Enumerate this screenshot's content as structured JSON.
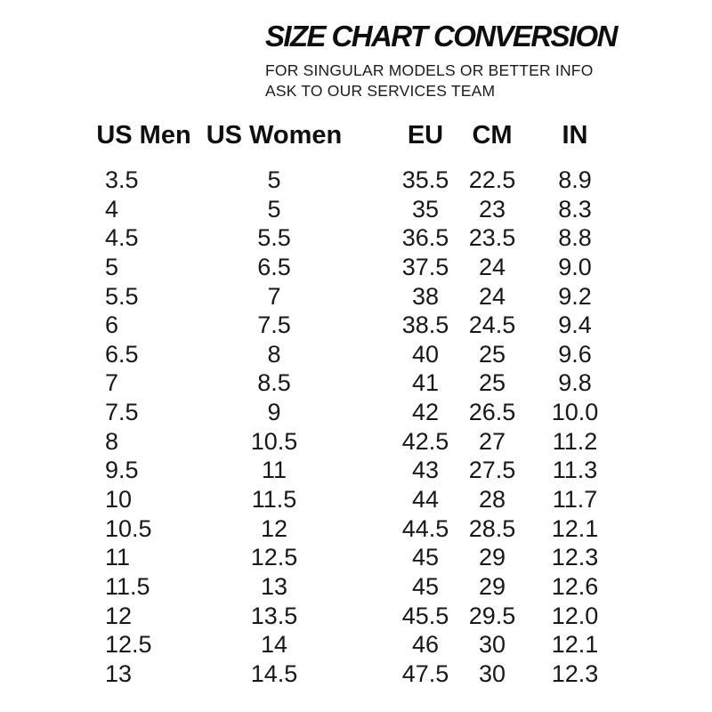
{
  "page": {
    "background_color": "#ffffff",
    "text_color": "#161616"
  },
  "header": {
    "title": "SIZE CHART CONVERSION",
    "subtitle_line1": "FOR SINGULAR MODELS OR BETTER INFO",
    "subtitle_line2": "ASK TO OUR SERVICES TEAM"
  },
  "table": {
    "columns": [
      "US Men",
      "US Women",
      "EU",
      "CM",
      "IN"
    ],
    "rows": [
      [
        "3.5",
        "5",
        "35.5",
        "22.5",
        "8.9"
      ],
      [
        "4",
        "5",
        "35",
        "23",
        "8.3"
      ],
      [
        "4.5",
        "5.5",
        "36.5",
        "23.5",
        "8.8"
      ],
      [
        "5",
        "6.5",
        "37.5",
        "24",
        "9.0"
      ],
      [
        "5.5",
        "7",
        "38",
        "24",
        "9.2"
      ],
      [
        "6",
        "7.5",
        "38.5",
        "24.5",
        "9.4"
      ],
      [
        "6.5",
        "8",
        "40",
        "25",
        "9.6"
      ],
      [
        "7",
        "8.5",
        "41",
        "25",
        "9.8"
      ],
      [
        "7.5",
        "9",
        "42",
        "26.5",
        "10.0"
      ],
      [
        "8",
        "10.5",
        "42.5",
        "27",
        "11.2"
      ],
      [
        "9.5",
        "11",
        "43",
        "27.5",
        "11.3"
      ],
      [
        "10",
        "11.5",
        "44",
        "28",
        "11.7"
      ],
      [
        "10.5",
        "12",
        "44.5",
        "28.5",
        "12.1"
      ],
      [
        "11",
        "12.5",
        "45",
        "29",
        "12.3"
      ],
      [
        "11.5",
        "13",
        "45",
        "29",
        "12.6"
      ],
      [
        "12",
        "13.5",
        "45.5",
        "29.5",
        "12.0"
      ],
      [
        "12.5",
        "14",
        "46",
        "30",
        "12.1"
      ],
      [
        "13",
        "14.5",
        "47.5",
        "30",
        "12.3"
      ]
    ]
  }
}
